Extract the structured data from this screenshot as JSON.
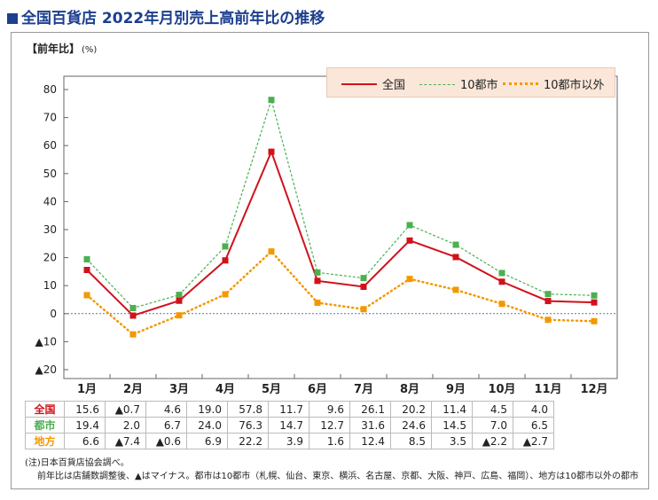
{
  "header": {
    "title": "全国百貨店 2022年月別売上高前年比の推移"
  },
  "axis": {
    "ylabel": "【前年比】",
    "unit": "(%)"
  },
  "legend": [
    {
      "label": "全国",
      "color": "#d0121b",
      "style": "solid"
    },
    {
      "label": "10都市",
      "color": "#4caf50",
      "style": "dashed"
    },
    {
      "label": "10都市以外",
      "color": "#f39800",
      "style": "dotted"
    }
  ],
  "chart_data": {
    "type": "line",
    "categories": [
      "1月",
      "2月",
      "3月",
      "4月",
      "5月",
      "6月",
      "7月",
      "8月",
      "9月",
      "10月",
      "11月",
      "12月"
    ],
    "series": [
      {
        "name": "全国",
        "color": "#d0121b",
        "values": [
          15.6,
          -0.7,
          4.6,
          19.0,
          57.8,
          11.7,
          9.6,
          26.1,
          20.2,
          11.4,
          4.5,
          4.0
        ]
      },
      {
        "name": "10都市",
        "color": "#4caf50",
        "values": [
          19.4,
          2.0,
          6.7,
          24.0,
          76.3,
          14.7,
          12.7,
          31.6,
          24.6,
          14.5,
          7.0,
          6.5
        ]
      },
      {
        "name": "10都市以外",
        "color": "#f39800",
        "values": [
          6.6,
          -7.4,
          -0.6,
          6.9,
          22.2,
          3.9,
          1.6,
          12.4,
          8.5,
          3.5,
          -2.2,
          -2.7
        ]
      }
    ],
    "ylim": [
      -20,
      80
    ],
    "yticks": [
      -20,
      -10,
      0,
      10,
      20,
      30,
      40,
      50,
      60,
      70,
      80
    ],
    "ytick_labels": [
      "▲20",
      "▲10",
      "0",
      "10",
      "20",
      "30",
      "40",
      "50",
      "60",
      "70",
      "80"
    ]
  },
  "table": {
    "rows": [
      {
        "label": "全国",
        "color": "#d0121b",
        "cells": [
          "15.6",
          "▲0.7",
          "4.6",
          "19.0",
          "57.8",
          "11.7",
          "9.6",
          "26.1",
          "20.2",
          "11.4",
          "4.5",
          "4.0"
        ]
      },
      {
        "label": "都市",
        "color": "#4caf50",
        "cells": [
          "19.4",
          "2.0",
          "6.7",
          "24.0",
          "76.3",
          "14.7",
          "12.7",
          "31.6",
          "24.6",
          "14.5",
          "7.0",
          "6.5"
        ]
      },
      {
        "label": "地方",
        "color": "#f39800",
        "cells": [
          "6.6",
          "▲7.4",
          "▲0.6",
          "6.9",
          "22.2",
          "3.9",
          "1.6",
          "12.4",
          "8.5",
          "3.5",
          "▲2.2",
          "▲2.7"
        ]
      }
    ]
  },
  "notes": {
    "line1": "(注)日本百貨店協会調べ。",
    "line2": "前年比は店舗数調整後、▲はマイナス。都市は10都市（札幌、仙台、東京、横浜、名古屋、京都、大阪、神戸、広島、福岡）、地方は10都市以外の都市"
  }
}
